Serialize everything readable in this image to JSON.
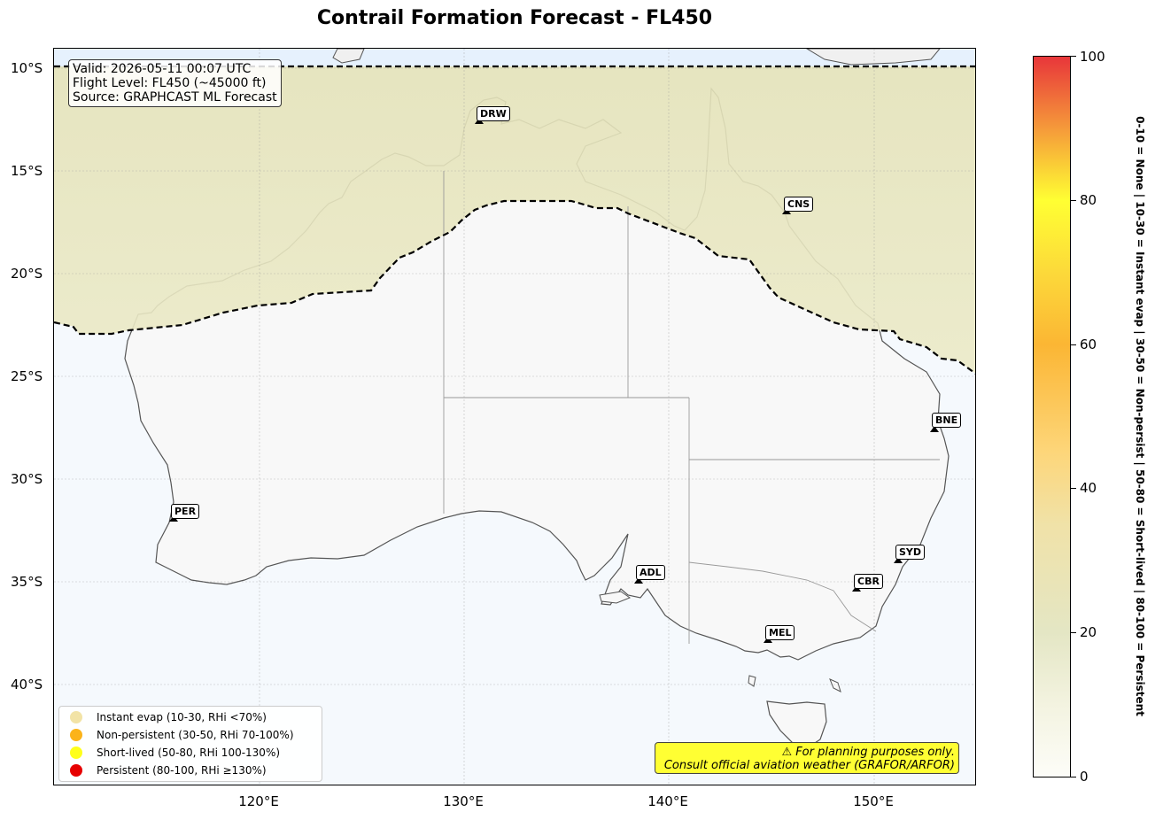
{
  "title": "Contrail Formation Forecast - FL450",
  "info": {
    "valid": "Valid: 2026-05-11 00:07 UTC",
    "flight_level": "Flight Level: FL450 (~45000 ft)",
    "source": "Source: GRAPHCAST ML Forecast"
  },
  "y_axis_labels": [
    "10°S",
    "15°S",
    "20°S",
    "25°S",
    "30°S",
    "35°S",
    "40°S"
  ],
  "x_axis_labels": [
    "120°E",
    "130°E",
    "140°E",
    "150°E"
  ],
  "airports": [
    {
      "code": "DRW",
      "lon": 130.9,
      "lat": -12.4
    },
    {
      "code": "CNS",
      "lon": 145.8,
      "lat": -16.9
    },
    {
      "code": "BNE",
      "lon": 153.1,
      "lat": -27.4
    },
    {
      "code": "PER",
      "lon": 115.97,
      "lat": -31.9
    },
    {
      "code": "ADL",
      "lon": 138.5,
      "lat": -34.9
    },
    {
      "code": "SYD",
      "lon": 151.2,
      "lat": -33.9
    },
    {
      "code": "CBR",
      "lon": 149.2,
      "lat": -35.3
    },
    {
      "code": "MEL",
      "lon": 144.8,
      "lat": -37.7
    }
  ],
  "legend": [
    {
      "label": "Instant evap (10-30, RHi <70%)",
      "color": "#f2e3a6"
    },
    {
      "label": "Non-persistent (30-50, RHi 70-100%)",
      "color": "#fbb31a"
    },
    {
      "label": "Short-lived (50-80, RHi 100-130%)",
      "color": "#ffff1a"
    },
    {
      "label": "Persistent (80-100, RHi ≥130%)",
      "color": "#e60000"
    }
  ],
  "disclaimer": {
    "line1": "⚠ For planning purposes only.",
    "line2": "Consult official aviation weather (GRAFOR/ARFOR)"
  },
  "colorbar": {
    "min": 0,
    "max": 100,
    "ticks": [
      "0",
      "20",
      "40",
      "60",
      "80",
      "100"
    ],
    "caption": "0-10 = None  |  10-30 = Instant evap  |  30-50 = Non-persist  |  50-80 = Short-lived  |  80-100 = Persistent"
  },
  "colors": {
    "ocean": "#f5f9fd",
    "north_ocean": "#e6f1fd",
    "north_zone_fill": "#e6e4bf",
    "land_central": "#f8f8f8",
    "coastline": "#555555",
    "boundary": "#999999"
  }
}
